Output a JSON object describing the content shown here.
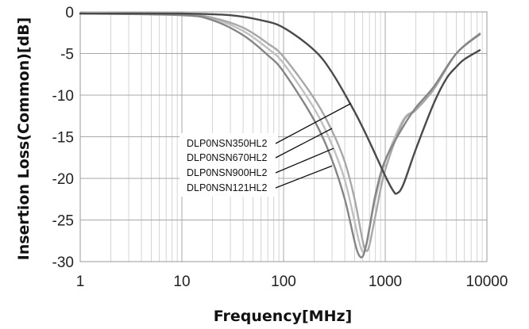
{
  "chart_data": {
    "type": "line",
    "title": "",
    "xlabel": "Frequency[MHz]",
    "ylabel": "Insertion Loss(Common)[dB]",
    "xscale": "log",
    "xlim": [
      1,
      10000
    ],
    "ylim": [
      -30,
      0
    ],
    "grid": true,
    "x_ticks": [
      1,
      10,
      100,
      1000,
      10000
    ],
    "x_tick_labels": [
      "1",
      "10",
      "100",
      "1000",
      "10000"
    ],
    "y_ticks": [
      0,
      -5,
      -10,
      -15,
      -20,
      -25,
      -30
    ],
    "y_tick_labels": [
      "0",
      "-5",
      "-10",
      "-15",
      "-20",
      "-25",
      "-30"
    ],
    "legend_placement": "center, with leader lines to each curve",
    "series": [
      {
        "name": "DLP0NSN350HL2",
        "color": "#4a4a4a",
        "x": [
          1,
          10,
          30,
          60,
          100,
          200,
          300,
          500,
          700,
          1000,
          1200,
          1300,
          1500,
          2000,
          3000,
          4000,
          5000,
          6000,
          8500
        ],
        "y": [
          -0.2,
          -0.2,
          -0.4,
          -1.0,
          -1.9,
          -4.6,
          -7.3,
          -12.0,
          -15.6,
          -19.7,
          -21.5,
          -21.8,
          -20.8,
          -16.5,
          -11.0,
          -8.0,
          -6.6,
          -5.7,
          -4.6
        ]
      },
      {
        "name": "DLP0NSN670HL2",
        "color": "#a8a8a8",
        "x": [
          1,
          10,
          20,
          40,
          70,
          100,
          200,
          300,
          400,
          500,
          600,
          650,
          700,
          800,
          1000,
          1500,
          2000,
          3000,
          5000,
          8500
        ],
        "y": [
          -0.2,
          -0.3,
          -0.7,
          -1.9,
          -3.8,
          -5.4,
          -10.4,
          -14.3,
          -18.0,
          -22.5,
          -27.5,
          -28.7,
          -28.0,
          -24.5,
          -19.0,
          -13.2,
          -11.8,
          -9.3,
          -5.0,
          -2.6
        ]
      },
      {
        "name": "DLP0NSN900HL2",
        "color": "#c0c0c0",
        "x": [
          1,
          10,
          20,
          40,
          70,
          100,
          200,
          300,
          400,
          500,
          550,
          600,
          650,
          700,
          800,
          1000,
          1500,
          2000,
          3000,
          5000,
          8500
        ],
        "y": [
          -0.2,
          -0.3,
          -0.8,
          -2.3,
          -4.4,
          -6.2,
          -11.6,
          -16.0,
          -20.2,
          -25.2,
          -27.5,
          -28.8,
          -28.0,
          -25.8,
          -22.5,
          -18.0,
          -13.0,
          -11.7,
          -9.2,
          -5.0,
          -2.6
        ]
      },
      {
        "name": "DLP0NSN121HL2",
        "color": "#858585",
        "x": [
          1,
          10,
          20,
          40,
          70,
          100,
          200,
          300,
          400,
          500,
          550,
          600,
          650,
          700,
          800,
          1000,
          1500,
          2000,
          3000,
          5000,
          8500
        ],
        "y": [
          -0.2,
          -0.4,
          -1.0,
          -2.8,
          -5.2,
          -7.2,
          -13.0,
          -17.8,
          -22.5,
          -27.6,
          -29.2,
          -29.4,
          -28.0,
          -26.0,
          -22.0,
          -17.8,
          -13.8,
          -11.5,
          -9.0,
          -5.0,
          -2.7
        ]
      }
    ]
  }
}
